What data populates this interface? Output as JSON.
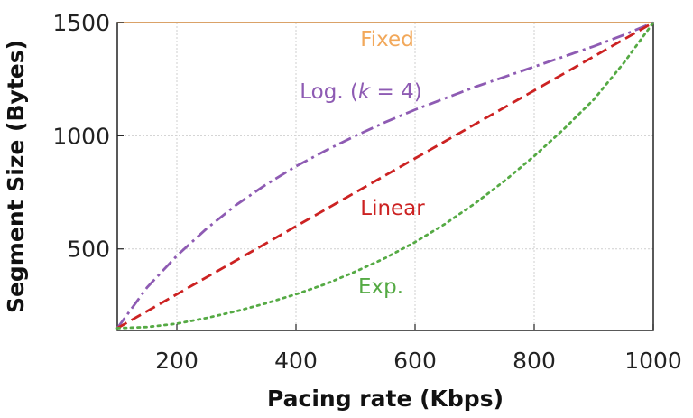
{
  "chart_data": {
    "type": "line",
    "title": "",
    "xlabel": "Pacing rate (Kbps)",
    "ylabel": "Segment Size (Bytes)",
    "xlim": [
      100,
      1000
    ],
    "ylim": [
      140,
      1500
    ],
    "xticks": [
      200,
      400,
      600,
      800,
      1000
    ],
    "yticks": [
      500,
      1000,
      1500
    ],
    "grid": true,
    "legend": "inline labels",
    "series": [
      {
        "name": "Fixed",
        "color": "#f2a85a",
        "dash": "solid",
        "x": [
          100,
          1000
        ],
        "y": [
          1500,
          1500
        ]
      },
      {
        "name": "Log. (k = 4)",
        "name_parts": [
          "Log. (",
          "k",
          " = 4)"
        ],
        "color": "#8e5bb3",
        "dash": "dashdot",
        "x": [
          100,
          150,
          200,
          250,
          300,
          350,
          400,
          450,
          500,
          550,
          600,
          650,
          700,
          750,
          800,
          850,
          900,
          950,
          1000
        ],
        "y": [
          150,
          330,
          470,
          590,
          695,
          785,
          865,
          935,
          1000,
          1060,
          1115,
          1165,
          1215,
          1260,
          1305,
          1350,
          1395,
          1445,
          1500
        ]
      },
      {
        "name": "Linear",
        "color": "#cc2222",
        "dash": "dashed",
        "x": [
          100,
          1000
        ],
        "y": [
          150,
          1500
        ]
      },
      {
        "name": "Exp.",
        "color": "#55aa44",
        "dash": "dotted",
        "x": [
          100,
          150,
          200,
          250,
          300,
          350,
          400,
          450,
          500,
          550,
          600,
          650,
          700,
          750,
          800,
          850,
          900,
          950,
          1000
        ],
        "y": [
          150,
          155,
          170,
          195,
          225,
          260,
          300,
          345,
          400,
          460,
          530,
          610,
          700,
          800,
          910,
          1030,
          1160,
          1320,
          1500
        ]
      }
    ]
  }
}
